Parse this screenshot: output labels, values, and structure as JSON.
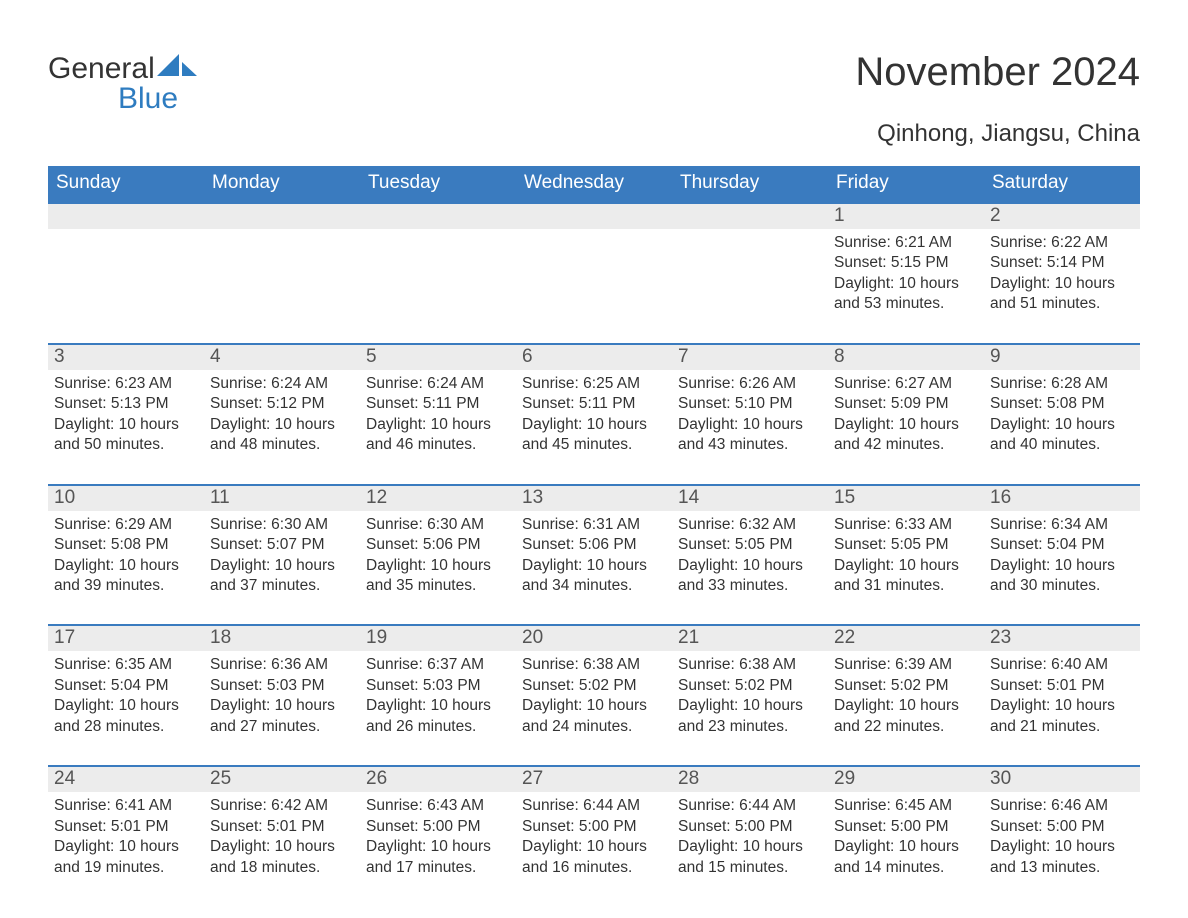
{
  "logo": {
    "word1": "General",
    "word2": "Blue"
  },
  "title": "November 2024",
  "location": "Qinhong, Jiangsu, China",
  "colors": {
    "header_bg": "#3a7bbf",
    "header_text": "#ffffff",
    "daynum_bg": "#ececec",
    "daynum_text": "#555555",
    "body_text": "#333333",
    "rule": "#3a7bbf",
    "logo_blue": "#2e7cc0",
    "background": "#ffffff"
  },
  "fonts": {
    "title_size_pt": 30,
    "location_size_pt": 18,
    "dow_size_pt": 14,
    "daynum_size_pt": 14,
    "body_size_pt": 12,
    "family": "Arial"
  },
  "days_of_week": [
    "Sunday",
    "Monday",
    "Tuesday",
    "Wednesday",
    "Thursday",
    "Friday",
    "Saturday"
  ],
  "labels": {
    "sunrise": "Sunrise:",
    "sunset": "Sunset:",
    "daylight": "Daylight:"
  },
  "weeks": [
    [
      {
        "empty": true
      },
      {
        "empty": true
      },
      {
        "empty": true
      },
      {
        "empty": true
      },
      {
        "empty": true
      },
      {
        "n": "1",
        "sunrise": "6:21 AM",
        "sunset": "5:15 PM",
        "daylight": "10 hours and 53 minutes."
      },
      {
        "n": "2",
        "sunrise": "6:22 AM",
        "sunset": "5:14 PM",
        "daylight": "10 hours and 51 minutes."
      }
    ],
    [
      {
        "n": "3",
        "sunrise": "6:23 AM",
        "sunset": "5:13 PM",
        "daylight": "10 hours and 50 minutes."
      },
      {
        "n": "4",
        "sunrise": "6:24 AM",
        "sunset": "5:12 PM",
        "daylight": "10 hours and 48 minutes."
      },
      {
        "n": "5",
        "sunrise": "6:24 AM",
        "sunset": "5:11 PM",
        "daylight": "10 hours and 46 minutes."
      },
      {
        "n": "6",
        "sunrise": "6:25 AM",
        "sunset": "5:11 PM",
        "daylight": "10 hours and 45 minutes."
      },
      {
        "n": "7",
        "sunrise": "6:26 AM",
        "sunset": "5:10 PM",
        "daylight": "10 hours and 43 minutes."
      },
      {
        "n": "8",
        "sunrise": "6:27 AM",
        "sunset": "5:09 PM",
        "daylight": "10 hours and 42 minutes."
      },
      {
        "n": "9",
        "sunrise": "6:28 AM",
        "sunset": "5:08 PM",
        "daylight": "10 hours and 40 minutes."
      }
    ],
    [
      {
        "n": "10",
        "sunrise": "6:29 AM",
        "sunset": "5:08 PM",
        "daylight": "10 hours and 39 minutes."
      },
      {
        "n": "11",
        "sunrise": "6:30 AM",
        "sunset": "5:07 PM",
        "daylight": "10 hours and 37 minutes."
      },
      {
        "n": "12",
        "sunrise": "6:30 AM",
        "sunset": "5:06 PM",
        "daylight": "10 hours and 35 minutes."
      },
      {
        "n": "13",
        "sunrise": "6:31 AM",
        "sunset": "5:06 PM",
        "daylight": "10 hours and 34 minutes."
      },
      {
        "n": "14",
        "sunrise": "6:32 AM",
        "sunset": "5:05 PM",
        "daylight": "10 hours and 33 minutes."
      },
      {
        "n": "15",
        "sunrise": "6:33 AM",
        "sunset": "5:05 PM",
        "daylight": "10 hours and 31 minutes."
      },
      {
        "n": "16",
        "sunrise": "6:34 AM",
        "sunset": "5:04 PM",
        "daylight": "10 hours and 30 minutes."
      }
    ],
    [
      {
        "n": "17",
        "sunrise": "6:35 AM",
        "sunset": "5:04 PM",
        "daylight": "10 hours and 28 minutes."
      },
      {
        "n": "18",
        "sunrise": "6:36 AM",
        "sunset": "5:03 PM",
        "daylight": "10 hours and 27 minutes."
      },
      {
        "n": "19",
        "sunrise": "6:37 AM",
        "sunset": "5:03 PM",
        "daylight": "10 hours and 26 minutes."
      },
      {
        "n": "20",
        "sunrise": "6:38 AM",
        "sunset": "5:02 PM",
        "daylight": "10 hours and 24 minutes."
      },
      {
        "n": "21",
        "sunrise": "6:38 AM",
        "sunset": "5:02 PM",
        "daylight": "10 hours and 23 minutes."
      },
      {
        "n": "22",
        "sunrise": "6:39 AM",
        "sunset": "5:02 PM",
        "daylight": "10 hours and 22 minutes."
      },
      {
        "n": "23",
        "sunrise": "6:40 AM",
        "sunset": "5:01 PM",
        "daylight": "10 hours and 21 minutes."
      }
    ],
    [
      {
        "n": "24",
        "sunrise": "6:41 AM",
        "sunset": "5:01 PM",
        "daylight": "10 hours and 19 minutes."
      },
      {
        "n": "25",
        "sunrise": "6:42 AM",
        "sunset": "5:01 PM",
        "daylight": "10 hours and 18 minutes."
      },
      {
        "n": "26",
        "sunrise": "6:43 AM",
        "sunset": "5:00 PM",
        "daylight": "10 hours and 17 minutes."
      },
      {
        "n": "27",
        "sunrise": "6:44 AM",
        "sunset": "5:00 PM",
        "daylight": "10 hours and 16 minutes."
      },
      {
        "n": "28",
        "sunrise": "6:44 AM",
        "sunset": "5:00 PM",
        "daylight": "10 hours and 15 minutes."
      },
      {
        "n": "29",
        "sunrise": "6:45 AM",
        "sunset": "5:00 PM",
        "daylight": "10 hours and 14 minutes."
      },
      {
        "n": "30",
        "sunrise": "6:46 AM",
        "sunset": "5:00 PM",
        "daylight": "10 hours and 13 minutes."
      }
    ]
  ]
}
